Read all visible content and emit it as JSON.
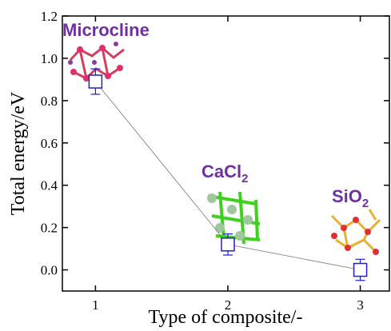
{
  "chart_data": {
    "type": "line",
    "x_label": "Type of composite/-",
    "y_label": "Total energy/eV",
    "x": [
      1,
      2,
      3
    ],
    "series": [
      {
        "color": "#1f1fd0",
        "line_color": "#777777",
        "values": [
          0.89,
          0.12,
          0.0
        ],
        "errors": [
          0.06,
          0.05,
          0.05
        ]
      }
    ],
    "xlim": [
      0.75,
      3.22
    ],
    "xticks": [
      1,
      2,
      3
    ],
    "ylim": [
      -0.1,
      1.2
    ],
    "yticks": [
      {
        "value": 0,
        "label": "0.0"
      },
      {
        "value": 0.2,
        "label": "0.2"
      },
      {
        "value": 0.4,
        "label": "0.4"
      },
      {
        "value": 0.6,
        "label": "0.6"
      },
      {
        "value": 0.8,
        "label": "0.8"
      },
      {
        "value": 1.0,
        "label": "1.0"
      },
      {
        "value": 1.2,
        "label": "1.2"
      }
    ],
    "annotations": [
      {
        "text": "Microcline"
      },
      {
        "text": "CaCl",
        "subscript": "2"
      },
      {
        "text": "SiO",
        "subscript": "2"
      }
    ]
  }
}
